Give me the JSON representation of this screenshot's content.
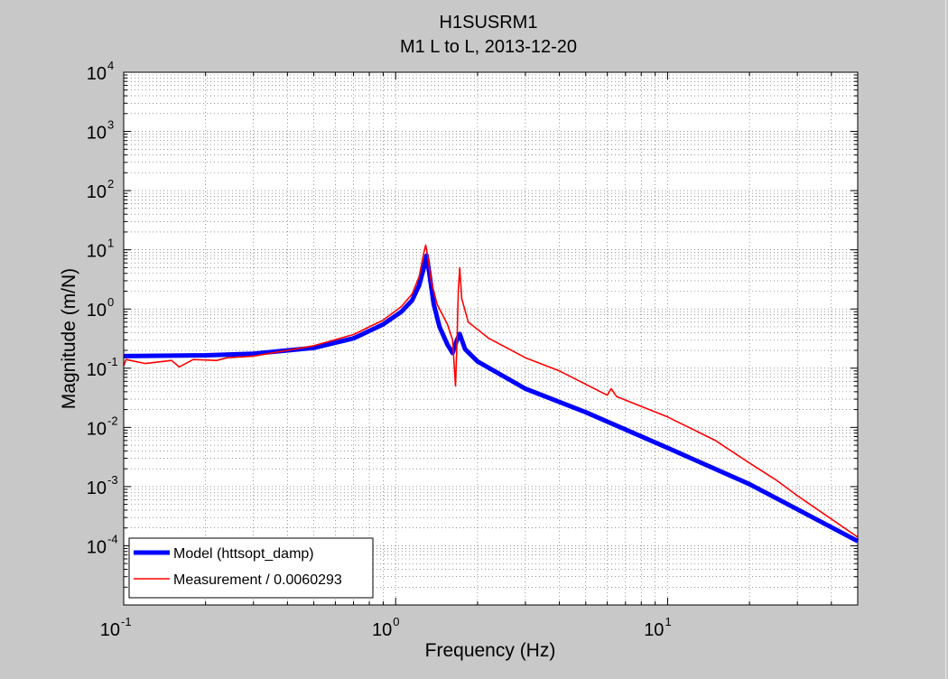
{
  "chart_data": {
    "type": "line",
    "title": "H1SUSRM1",
    "subtitle": "M1 L to L, 2013-12-20",
    "xlabel": "Frequency (Hz)",
    "ylabel": "Magnitude (m/N)",
    "x_scale": "log",
    "y_scale": "log",
    "xlim": [
      0.1,
      50
    ],
    "ylim": [
      1e-05,
      10000
    ],
    "grid": true,
    "legend_position": "bottom-left",
    "x_ticks": [
      {
        "value": 0.1,
        "base": "10",
        "exp": "-1"
      },
      {
        "value": 1,
        "base": "10",
        "exp": "0"
      },
      {
        "value": 10,
        "base": "10",
        "exp": "1"
      }
    ],
    "y_ticks": [
      {
        "value": 0.0001,
        "base": "10",
        "exp": "-4"
      },
      {
        "value": 0.001,
        "base": "10",
        "exp": "-3"
      },
      {
        "value": 0.01,
        "base": "10",
        "exp": "-2"
      },
      {
        "value": 0.1,
        "base": "10",
        "exp": "-1"
      },
      {
        "value": 1,
        "base": "10",
        "exp": "0"
      },
      {
        "value": 10,
        "base": "10",
        "exp": "1"
      },
      {
        "value": 100,
        "base": "10",
        "exp": "2"
      },
      {
        "value": 1000,
        "base": "10",
        "exp": "3"
      },
      {
        "value": 10000,
        "base": "10",
        "exp": "4"
      }
    ],
    "series": [
      {
        "name": "Model (httsopt_damp)",
        "color": "#0000ff",
        "line_width": "thick",
        "points": [
          [
            0.1,
            0.16
          ],
          [
            0.2,
            0.165
          ],
          [
            0.3,
            0.175
          ],
          [
            0.5,
            0.22
          ],
          [
            0.7,
            0.32
          ],
          [
            0.9,
            0.55
          ],
          [
            1.05,
            0.9
          ],
          [
            1.15,
            1.4
          ],
          [
            1.22,
            2.5
          ],
          [
            1.27,
            5
          ],
          [
            1.3,
            8
          ],
          [
            1.33,
            4
          ],
          [
            1.38,
            1.2
          ],
          [
            1.45,
            0.5
          ],
          [
            1.55,
            0.25
          ],
          [
            1.62,
            0.18
          ],
          [
            1.68,
            0.3
          ],
          [
            1.72,
            0.38
          ],
          [
            1.8,
            0.21
          ],
          [
            2,
            0.13
          ],
          [
            3,
            0.045
          ],
          [
            5,
            0.018
          ],
          [
            10,
            0.0045
          ],
          [
            20,
            0.0011
          ],
          [
            50,
            0.00012
          ]
        ]
      },
      {
        "name": "Measurement / 0.0060293",
        "color": "#ff0000",
        "line_width": "thin",
        "points": [
          [
            0.1,
            0.11
          ],
          [
            0.102,
            0.14
          ],
          [
            0.12,
            0.12
          ],
          [
            0.15,
            0.135
          ],
          [
            0.16,
            0.105
          ],
          [
            0.18,
            0.14
          ],
          [
            0.22,
            0.135
          ],
          [
            0.24,
            0.15
          ],
          [
            0.3,
            0.16
          ],
          [
            0.4,
            0.2
          ],
          [
            0.5,
            0.24
          ],
          [
            0.7,
            0.37
          ],
          [
            0.9,
            0.65
          ],
          [
            1.05,
            1.1
          ],
          [
            1.15,
            1.8
          ],
          [
            1.22,
            3.5
          ],
          [
            1.27,
            9
          ],
          [
            1.29,
            12
          ],
          [
            1.31,
            8
          ],
          [
            1.35,
            3
          ],
          [
            1.42,
            1.2
          ],
          [
            1.55,
            0.55
          ],
          [
            1.62,
            0.3
          ],
          [
            1.66,
            0.05
          ],
          [
            1.68,
            0.25
          ],
          [
            1.7,
            2
          ],
          [
            1.72,
            5
          ],
          [
            1.75,
            1.5
          ],
          [
            1.85,
            0.6
          ],
          [
            2.2,
            0.32
          ],
          [
            3,
            0.15
          ],
          [
            4,
            0.09
          ],
          [
            6,
            0.035
          ],
          [
            6.2,
            0.045
          ],
          [
            6.5,
            0.033
          ],
          [
            10,
            0.015
          ],
          [
            15,
            0.006
          ],
          [
            20,
            0.0025
          ],
          [
            25,
            0.0013
          ],
          [
            30,
            0.0007
          ],
          [
            50,
            0.00014
          ]
        ]
      }
    ]
  }
}
